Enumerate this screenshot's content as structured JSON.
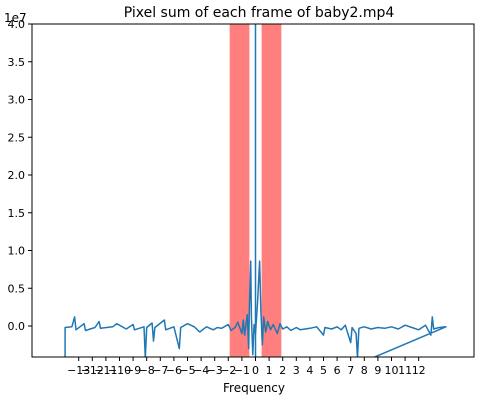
{
  "chart_data": {
    "type": "line",
    "title": "Pixel sum of each frame of baby2.mp4",
    "xlabel": "Frequency",
    "ylabel": "",
    "y_multiplier": "1e7",
    "xlim": [
      -14.5,
      15.5
    ],
    "ylim": [
      -0.4,
      4.0
    ],
    "xticks": [
      -13,
      -12,
      -11,
      -10,
      -9,
      -8,
      -7,
      -6,
      -5,
      -4,
      -3,
      -2,
      -1,
      0,
      1,
      2,
      3,
      4,
      5,
      6,
      7,
      8,
      9,
      10,
      11,
      12
    ],
    "yticks": [
      0.0,
      0.5,
      1.0,
      1.5,
      2.0,
      2.5,
      3.0,
      3.5,
      4.0
    ],
    "ytick_labels": [
      "0.0",
      "0.5",
      "1.0",
      "1.5",
      "2.0",
      "2.5",
      "3.0",
      "3.5",
      "4.0"
    ],
    "grid": false,
    "line_color": "#1f77b4",
    "band_color": "#ff0000",
    "shaded_bands": [
      {
        "x_start": -1.9,
        "x_end": -0.45
      },
      {
        "x_start": 0.45,
        "x_end": 1.9
      }
    ],
    "vertical_line": {
      "x": 0.0,
      "color": "#1f77b4"
    },
    "series": [
      {
        "values": [
          {
            "x": -14.0,
            "y": -0.43
          },
          {
            "x": -14.0,
            "y": -0.02
          },
          {
            "x": -13.5,
            "y": -0.01
          },
          {
            "x": -13.3,
            "y": 0.12
          },
          {
            "x": -13.2,
            "y": -0.05
          },
          {
            "x": -12.6,
            "y": 0.03
          },
          {
            "x": -12.5,
            "y": -0.06
          },
          {
            "x": -11.8,
            "y": -0.02
          },
          {
            "x": -11.5,
            "y": 0.06
          },
          {
            "x": -11.4,
            "y": -0.03
          },
          {
            "x": -10.5,
            "y": -0.01
          },
          {
            "x": -10.2,
            "y": 0.03
          },
          {
            "x": -9.5,
            "y": -0.04
          },
          {
            "x": -9.0,
            "y": 0.02
          },
          {
            "x": -8.9,
            "y": -0.05
          },
          {
            "x": -8.2,
            "y": -0.01
          },
          {
            "x": -8.1,
            "y": -0.42
          },
          {
            "x": -8.0,
            "y": -0.02
          },
          {
            "x": -7.6,
            "y": 0.04
          },
          {
            "x": -7.5,
            "y": -0.2
          },
          {
            "x": -7.4,
            "y": -0.02
          },
          {
            "x": -6.7,
            "y": 0.08
          },
          {
            "x": -6.6,
            "y": -0.05
          },
          {
            "x": -6.0,
            "y": -0.01
          },
          {
            "x": -5.6,
            "y": -0.3
          },
          {
            "x": -5.5,
            "y": -0.02
          },
          {
            "x": -5.0,
            "y": 0.03
          },
          {
            "x": -4.5,
            "y": -0.01
          },
          {
            "x": -4.1,
            "y": -0.08
          },
          {
            "x": -3.6,
            "y": -0.01
          },
          {
            "x": -3.1,
            "y": -0.05
          },
          {
            "x": -2.8,
            "y": -0.02
          },
          {
            "x": -2.5,
            "y": -0.03
          },
          {
            "x": -2.0,
            "y": 0.02
          },
          {
            "x": -1.8,
            "y": -0.06
          },
          {
            "x": -1.5,
            "y": -0.02
          },
          {
            "x": -1.3,
            "y": 0.05
          },
          {
            "x": -1.0,
            "y": -0.1
          },
          {
            "x": -0.9,
            "y": 0.08
          },
          {
            "x": -0.8,
            "y": -0.12
          },
          {
            "x": -0.6,
            "y": 0.15
          },
          {
            "x": -0.5,
            "y": -0.3
          },
          {
            "x": -0.45,
            "y": 0.25
          },
          {
            "x": -0.35,
            "y": 0.86
          },
          {
            "x": -0.3,
            "y": 0.12
          },
          {
            "x": -0.2,
            "y": -0.38
          },
          {
            "x": -0.1,
            "y": 0.02
          },
          {
            "x": 0.0,
            "y": -0.1
          },
          {
            "x": 0.15,
            "y": 0.3
          },
          {
            "x": 0.3,
            "y": 0.86
          },
          {
            "x": 0.4,
            "y": 0.2
          },
          {
            "x": 0.5,
            "y": -0.25
          },
          {
            "x": 0.6,
            "y": 0.12
          },
          {
            "x": 0.75,
            "y": -0.08
          },
          {
            "x": 0.9,
            "y": 0.06
          },
          {
            "x": 1.1,
            "y": -0.05
          },
          {
            "x": 1.3,
            "y": 0.02
          },
          {
            "x": 1.6,
            "y": -0.1
          },
          {
            "x": 1.8,
            "y": 0.03
          },
          {
            "x": 2.0,
            "y": -0.04
          },
          {
            "x": 2.3,
            "y": -0.01
          },
          {
            "x": 2.6,
            "y": -0.06
          },
          {
            "x": 3.0,
            "y": -0.02
          },
          {
            "x": 3.3,
            "y": -0.05
          },
          {
            "x": 4.0,
            "y": -0.03
          },
          {
            "x": 4.5,
            "y": -0.01
          },
          {
            "x": 5.0,
            "y": -0.12
          },
          {
            "x": 5.1,
            "y": -0.02
          },
          {
            "x": 5.6,
            "y": -0.04
          },
          {
            "x": 6.0,
            "y": -0.01
          },
          {
            "x": 6.3,
            "y": -0.05
          },
          {
            "x": 6.6,
            "y": 0.01
          },
          {
            "x": 7.0,
            "y": -0.22
          },
          {
            "x": 7.1,
            "y": -0.02
          },
          {
            "x": 7.4,
            "y": -0.1
          },
          {
            "x": 7.5,
            "y": -0.42
          },
          {
            "x": 7.6,
            "y": -0.03
          },
          {
            "x": 8.0,
            "y": -0.01
          },
          {
            "x": 8.5,
            "y": -0.04
          },
          {
            "x": 9.0,
            "y": -0.02
          },
          {
            "x": 9.5,
            "y": -0.03
          },
          {
            "x": 10.0,
            "y": -0.01
          },
          {
            "x": 10.5,
            "y": -0.04
          },
          {
            "x": 11.0,
            "y": 0.01
          },
          {
            "x": 11.5,
            "y": -0.02
          },
          {
            "x": 12.0,
            "y": -0.05
          },
          {
            "x": 12.5,
            "y": 0.01
          },
          {
            "x": 12.9,
            "y": -0.12
          },
          {
            "x": 13.0,
            "y": 0.12
          },
          {
            "x": 13.1,
            "y": -0.04
          },
          {
            "x": 13.5,
            "y": -0.02
          },
          {
            "x": 14.0,
            "y": -0.01
          },
          {
            "x": 8.5,
            "y": -0.43
          }
        ]
      }
    ]
  }
}
